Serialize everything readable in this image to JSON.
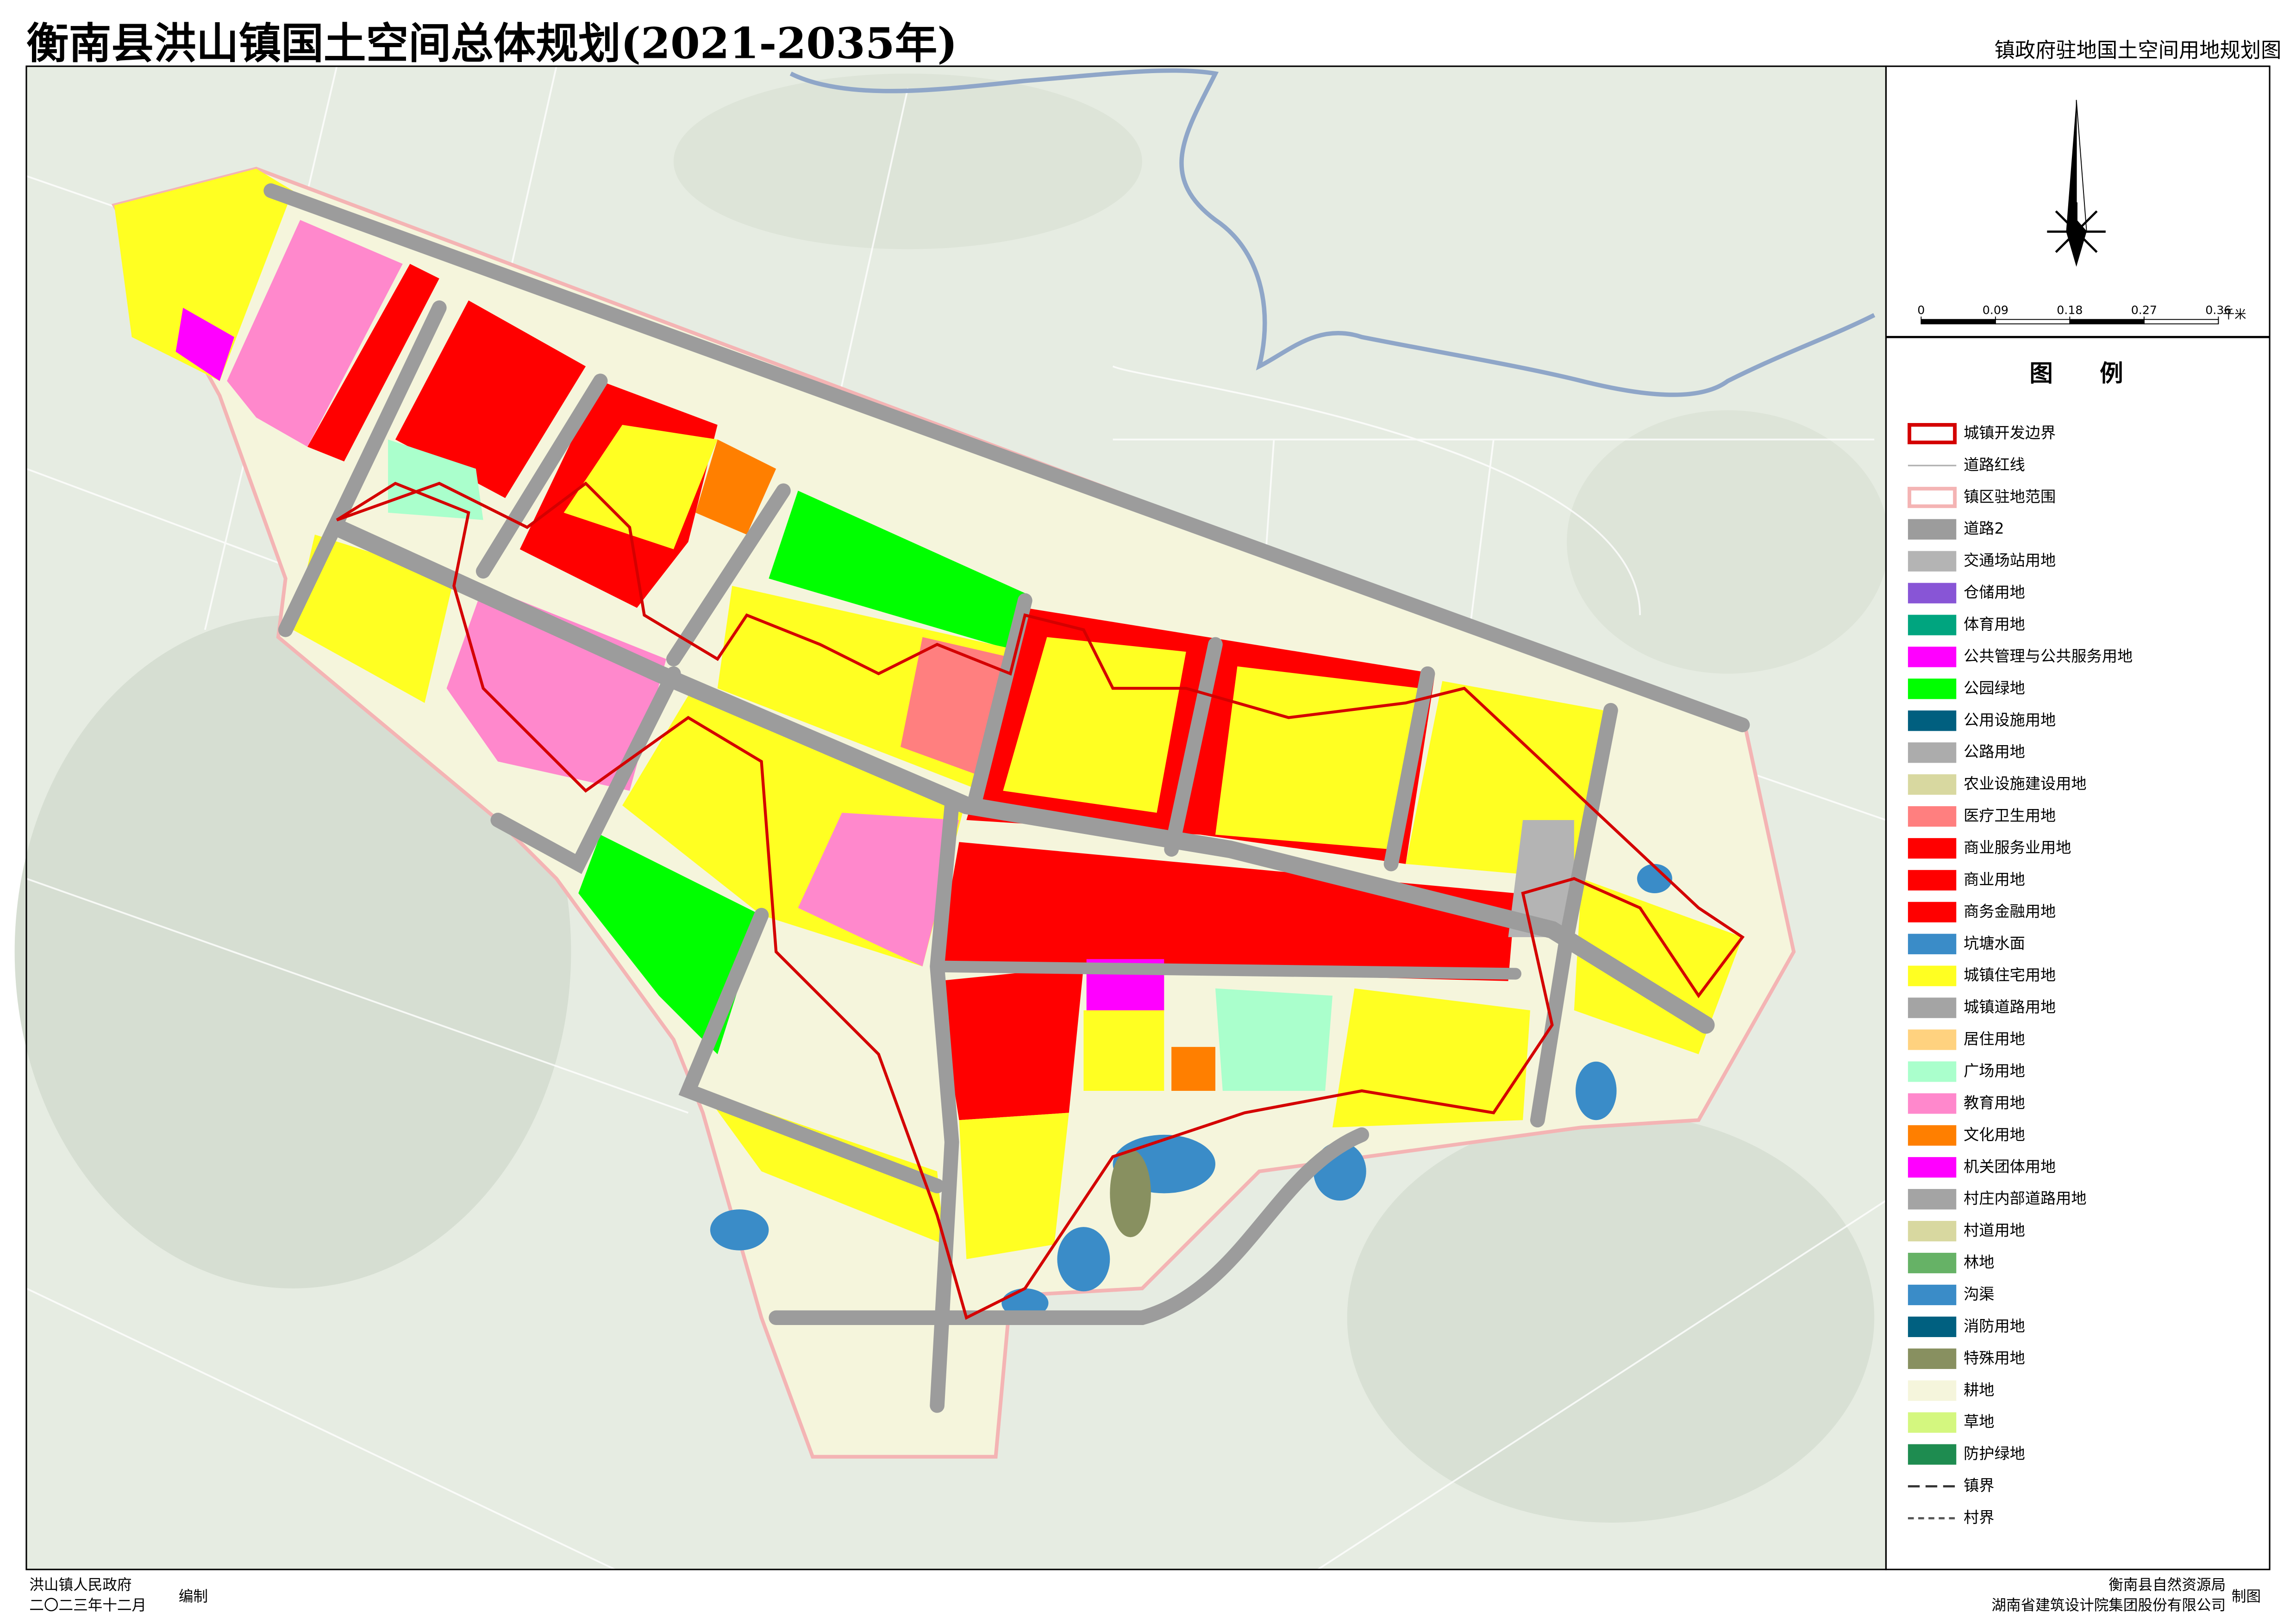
{
  "header": {
    "title": "衡南县洪山镇国土空间总体规划(2021-2035年)",
    "subtitle": "镇政府驻地国土空间用地规划图"
  },
  "scale": {
    "ticks": [
      0,
      0.09,
      0.18,
      0.27,
      0.36
    ],
    "unit": "千米"
  },
  "legend": {
    "title": "图　　例",
    "items": [
      {
        "label": "城镇开发边界",
        "color": "#d40000",
        "symbol": "outline"
      },
      {
        "label": "道路红线",
        "color": "#b0b0b0",
        "symbol": "line"
      },
      {
        "label": "镇区驻地范围",
        "color": "#f4b4b4",
        "symbol": "outline"
      },
      {
        "label": "道路2",
        "color": "#9c9c9c",
        "symbol": "fill"
      },
      {
        "label": "交通场站用地",
        "color": "#b4b4b4",
        "symbol": "fill"
      },
      {
        "label": "仓储用地",
        "color": "#8855d6",
        "symbol": "fill"
      },
      {
        "label": "体育用地",
        "color": "#00a57f",
        "symbol": "fill"
      },
      {
        "label": "公共管理与公共服务用地",
        "color": "#ff00ff",
        "symbol": "fill"
      },
      {
        "label": "公园绿地",
        "color": "#00ff00",
        "symbol": "fill"
      },
      {
        "label": "公用设施用地",
        "color": "#005f7f",
        "symbol": "fill"
      },
      {
        "label": "公路用地",
        "color": "#acacac",
        "symbol": "fill"
      },
      {
        "label": "农业设施建设用地",
        "color": "#d8d8a0",
        "symbol": "fill"
      },
      {
        "label": "医疗卫生用地",
        "color": "#ff7f7f",
        "symbol": "fill"
      },
      {
        "label": "商业服务业用地",
        "color": "#ff0000",
        "symbol": "fill"
      },
      {
        "label": "商业用地",
        "color": "#ff0000",
        "symbol": "fill"
      },
      {
        "label": "商务金融用地",
        "color": "#ff0000",
        "symbol": "fill"
      },
      {
        "label": "坑塘水面",
        "color": "#3a8cc8",
        "symbol": "fill"
      },
      {
        "label": "城镇住宅用地",
        "color": "#ffff22",
        "symbol": "fill"
      },
      {
        "label": "城镇道路用地",
        "color": "#a4a4a4",
        "symbol": "fill"
      },
      {
        "label": "居住用地",
        "color": "#ffd27f",
        "symbol": "fill"
      },
      {
        "label": "广场用地",
        "color": "#aaffcc",
        "symbol": "fill"
      },
      {
        "label": "教育用地",
        "color": "#ff88cc",
        "symbol": "fill"
      },
      {
        "label": "文化用地",
        "color": "#ff7f00",
        "symbol": "fill"
      },
      {
        "label": "机关团体用地",
        "color": "#ff00ff",
        "symbol": "fill"
      },
      {
        "label": "村庄内部道路用地",
        "color": "#a4a4a4",
        "symbol": "fill"
      },
      {
        "label": "村道用地",
        "color": "#d8d8a0",
        "symbol": "fill"
      },
      {
        "label": "林地",
        "color": "#66b266",
        "symbol": "fill"
      },
      {
        "label": "沟渠",
        "color": "#3a8cc8",
        "symbol": "fill"
      },
      {
        "label": "消防用地",
        "color": "#006080",
        "symbol": "fill"
      },
      {
        "label": "特殊用地",
        "color": "#889060",
        "symbol": "fill"
      },
      {
        "label": "耕地",
        "color": "#f5f5dc",
        "symbol": "fill"
      },
      {
        "label": "草地",
        "color": "#d4f77f",
        "symbol": "fill"
      },
      {
        "label": "防护绿地",
        "color": "#1e8c50",
        "symbol": "fill"
      },
      {
        "label": "镇界",
        "color": "#333333",
        "symbol": "dash-long"
      },
      {
        "label": "村界",
        "color": "#555555",
        "symbol": "dash-short"
      }
    ]
  },
  "footer": {
    "left": {
      "org": "洪山镇人民政府",
      "date": "二〇二三年十二月",
      "action": "编制"
    },
    "right": {
      "org1": "衡南县自然资源局",
      "org2": "湖南省建筑设计院集团股份有限公司",
      "action": "制图"
    }
  }
}
